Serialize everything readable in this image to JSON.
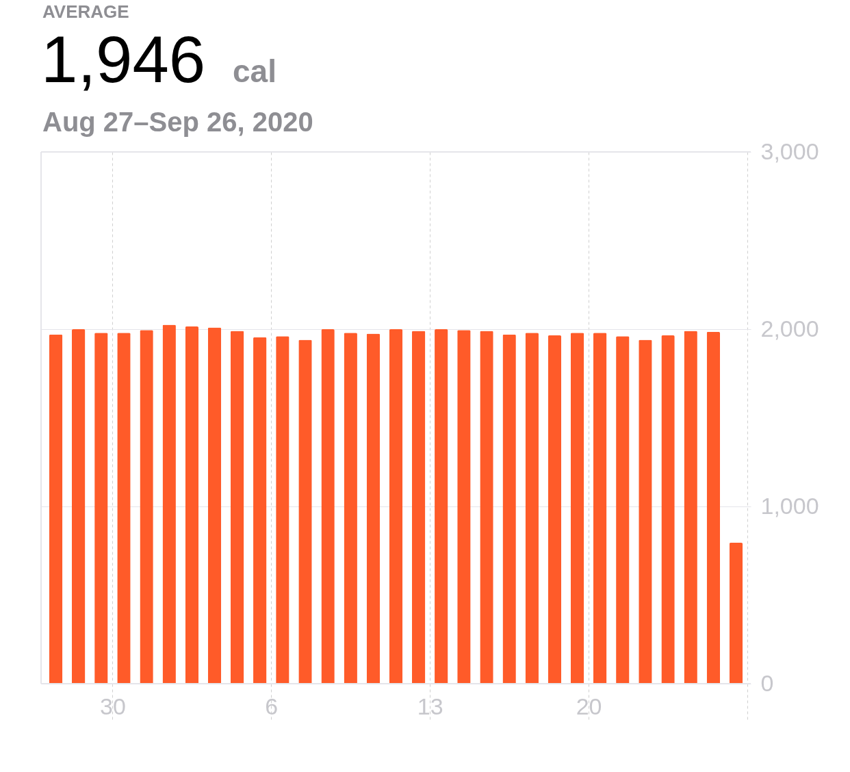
{
  "chart_data": {
    "type": "bar",
    "title": "1,946",
    "subtitle": "Aug 27–Sep 26, 2020",
    "annotations": [
      "AVERAGE",
      "cal"
    ],
    "x": [
      "2020-08-27T12:00",
      "2020-08-28T12:00",
      "2020-08-29T12:00",
      "2020-08-30T12:00",
      "2020-08-31T12:00",
      "2020-09-01T12:00",
      "2020-09-02T12:00",
      "2020-09-03T12:00",
      "2020-09-04T12:00",
      "2020-09-05T12:00",
      "2020-09-06T12:00",
      "2020-09-07T12:00",
      "2020-09-08T12:00",
      "2020-09-09T12:00",
      "2020-09-10T12:00",
      "2020-09-11T12:00",
      "2020-09-12T12:00",
      "2020-09-13T12:00",
      "2020-09-14T12:00",
      "2020-09-15T12:00",
      "2020-09-16T12:00",
      "2020-09-17T12:00",
      "2020-09-18T12:00",
      "2020-09-19T12:00",
      "2020-09-20T12:00",
      "2020-09-21T12:00",
      "2020-09-22T12:00",
      "2020-09-23T12:00",
      "2020-09-24T12:00",
      "2020-09-25T12:00",
      "2020-09-26T12:00"
    ],
    "values": [
      1970,
      2000,
      1980,
      1980,
      1995,
      2025,
      2015,
      2010,
      1990,
      1955,
      1960,
      1940,
      2000,
      1980,
      1975,
      2000,
      1990,
      2000,
      1995,
      1990,
      1970,
      1980,
      1965,
      1980,
      1980,
      1960,
      1940,
      1965,
      1990,
      1985,
      795
    ],
    "color": "#ff5b29",
    "xlim": [
      "2020-08-27",
      "2020-09-27"
    ],
    "xticks": [
      {
        "value": "2020-08-30",
        "label": "30"
      },
      {
        "value": "2020-09-06",
        "label": "6"
      },
      {
        "value": "2020-09-13",
        "label": "13"
      },
      {
        "value": "2020-09-20",
        "label": "20"
      },
      {
        "value": "2020-09-27",
        "label": null
      }
    ],
    "ylim": [
      0,
      3000
    ],
    "yticks": [
      {
        "value": 0,
        "label": "0"
      },
      {
        "value": 1000,
        "label": "1,000"
      },
      {
        "value": 2000,
        "label": "2,000"
      },
      {
        "value": 3000,
        "label": "3,000"
      }
    ],
    "grid": true
  }
}
